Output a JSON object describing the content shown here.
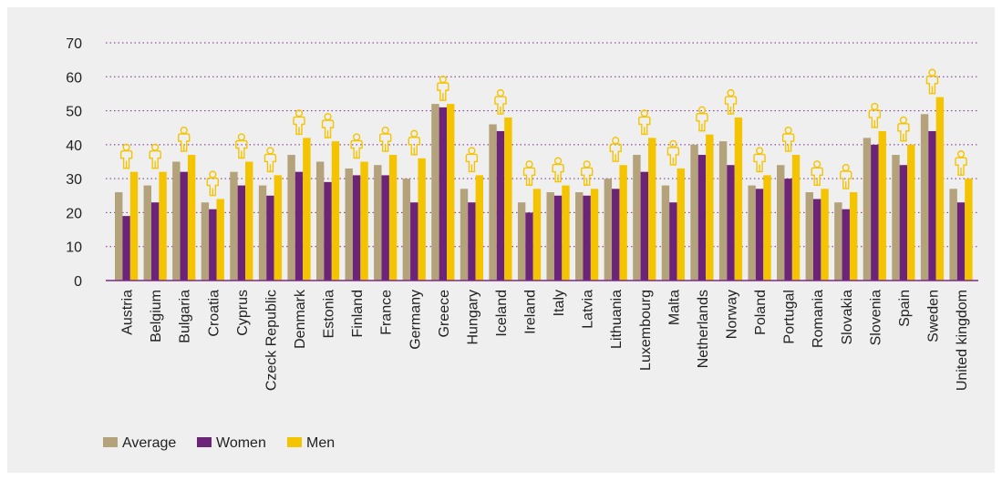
{
  "chart_data": {
    "type": "bar",
    "title": "",
    "xlabel": "",
    "ylabel": "",
    "ylim": [
      0,
      70
    ],
    "yticks": [
      0,
      10,
      20,
      30,
      40,
      50,
      60,
      70
    ],
    "grid": "horizontal-dotted",
    "legend_position": "bottom-left",
    "categories": [
      "Austria",
      "Belgium",
      "Bulgaria",
      "Croatia",
      "Cyprus",
      "Czeck Republic",
      "Denmark",
      "Estonia",
      "Finland",
      "France",
      "Germany",
      "Greece",
      "Hungary",
      "Iceland",
      "Ireland",
      "Italy",
      "Latvia",
      "Lithuania",
      "Luxembourg",
      "Malta",
      "Netherlands",
      "Norway",
      "Poland",
      "Portugal",
      "Romania",
      "Slovakia",
      "Slovenia",
      "Spain",
      "Sweden",
      "United kingdom"
    ],
    "series": [
      {
        "name": "Average",
        "color": "#b3a27a",
        "values": [
          26,
          28,
          35,
          23,
          32,
          28,
          37,
          35,
          33,
          34,
          30,
          52,
          27,
          46,
          23,
          26,
          26,
          30,
          37,
          28,
          40,
          41,
          28,
          34,
          26,
          23,
          42,
          37,
          49,
          27
        ]
      },
      {
        "name": "Women",
        "color": "#6b2478",
        "values": [
          19,
          23,
          32,
          21,
          28,
          25,
          32,
          29,
          31,
          31,
          23,
          51,
          23,
          44,
          20,
          25,
          25,
          27,
          32,
          23,
          37,
          34,
          27,
          30,
          24,
          21,
          40,
          34,
          44,
          23
        ]
      },
      {
        "name": "Men",
        "color": "#f5c400",
        "values": [
          32,
          32,
          37,
          24,
          35,
          31,
          42,
          41,
          35,
          37,
          36,
          52,
          31,
          48,
          27,
          28,
          27,
          34,
          42,
          33,
          43,
          48,
          31,
          37,
          27,
          26,
          44,
          40,
          54,
          30
        ]
      }
    ],
    "marker_icon": "person-outline-icon",
    "marker_color": "#f5c400",
    "axis_color": "#7b2a8a"
  }
}
